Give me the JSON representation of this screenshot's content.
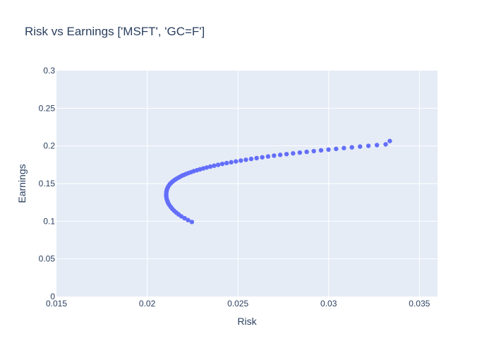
{
  "chart_data": {
    "type": "scatter",
    "title": "Risk vs Earnings ['MSFT', 'GC=F']",
    "xlabel": "Risk",
    "ylabel": "Earnings",
    "xlim": [
      0.015,
      0.036
    ],
    "ylim": [
      0,
      0.3
    ],
    "x_ticks": [
      0.015,
      0.02,
      0.025,
      0.03,
      0.035
    ],
    "x_tick_labels": [
      "0.015",
      "0.02",
      "0.025",
      "0.03",
      "0.035"
    ],
    "y_ticks": [
      0,
      0.05,
      0.1,
      0.15,
      0.2,
      0.25,
      0.3
    ],
    "y_tick_labels": [
      "0",
      "0.05",
      "0.1",
      "0.15",
      "0.2",
      "0.25",
      "0.3"
    ],
    "grid": true,
    "colors": {
      "marker": "#636efa",
      "plot_bg": "#e5ecf6",
      "grid": "#ffffff",
      "text": "#2a3f5f"
    },
    "series": [
      {
        "x": [
          0.02246,
          0.02225,
          0.02206,
          0.02188,
          0.02173,
          0.0216,
          0.02148,
          0.02138,
          0.0213,
          0.02122,
          0.02116,
          0.02112,
          0.02108,
          0.02106,
          0.02105,
          0.02105,
          0.02106,
          0.02108,
          0.02111,
          0.02115,
          0.0212,
          0.02126,
          0.02132,
          0.02139,
          0.02147,
          0.02156,
          0.02166,
          0.02177,
          0.02188,
          0.022,
          0.02213,
          0.02227,
          0.02242,
          0.02257,
          0.02274,
          0.02291,
          0.02309,
          0.02328,
          0.02348,
          0.02369,
          0.02391,
          0.02414,
          0.02438,
          0.02463,
          0.02489,
          0.02516,
          0.02544,
          0.02573,
          0.02603,
          0.02634,
          0.02666,
          0.02699,
          0.02733,
          0.02768,
          0.02804,
          0.02841,
          0.02879,
          0.02918,
          0.02958,
          0.02999,
          0.03041,
          0.03084,
          0.03128,
          0.03173,
          0.03219,
          0.03266,
          0.03314,
          0.03337
        ],
        "y": [
          0.099,
          0.1015,
          0.104,
          0.1065,
          0.109,
          0.1115,
          0.114,
          0.1165,
          0.119,
          0.1215,
          0.124,
          0.1265,
          0.129,
          0.1315,
          0.134,
          0.1365,
          0.139,
          0.1415,
          0.1435,
          0.1455,
          0.1475,
          0.1495,
          0.151,
          0.1525,
          0.154,
          0.1555,
          0.157,
          0.1585,
          0.16,
          0.1613,
          0.1626,
          0.1639,
          0.1652,
          0.1665,
          0.1677,
          0.1689,
          0.1701,
          0.1713,
          0.1725,
          0.1737,
          0.1749,
          0.1761,
          0.1772,
          0.1783,
          0.1794,
          0.1805,
          0.1816,
          0.1827,
          0.1838,
          0.1849,
          0.186,
          0.1871,
          0.1881,
          0.1891,
          0.1901,
          0.1911,
          0.1921,
          0.1931,
          0.1941,
          0.1951,
          0.1961,
          0.1971,
          0.1981,
          0.1991,
          0.2001,
          0.2011,
          0.2021,
          0.2065
        ]
      }
    ]
  }
}
